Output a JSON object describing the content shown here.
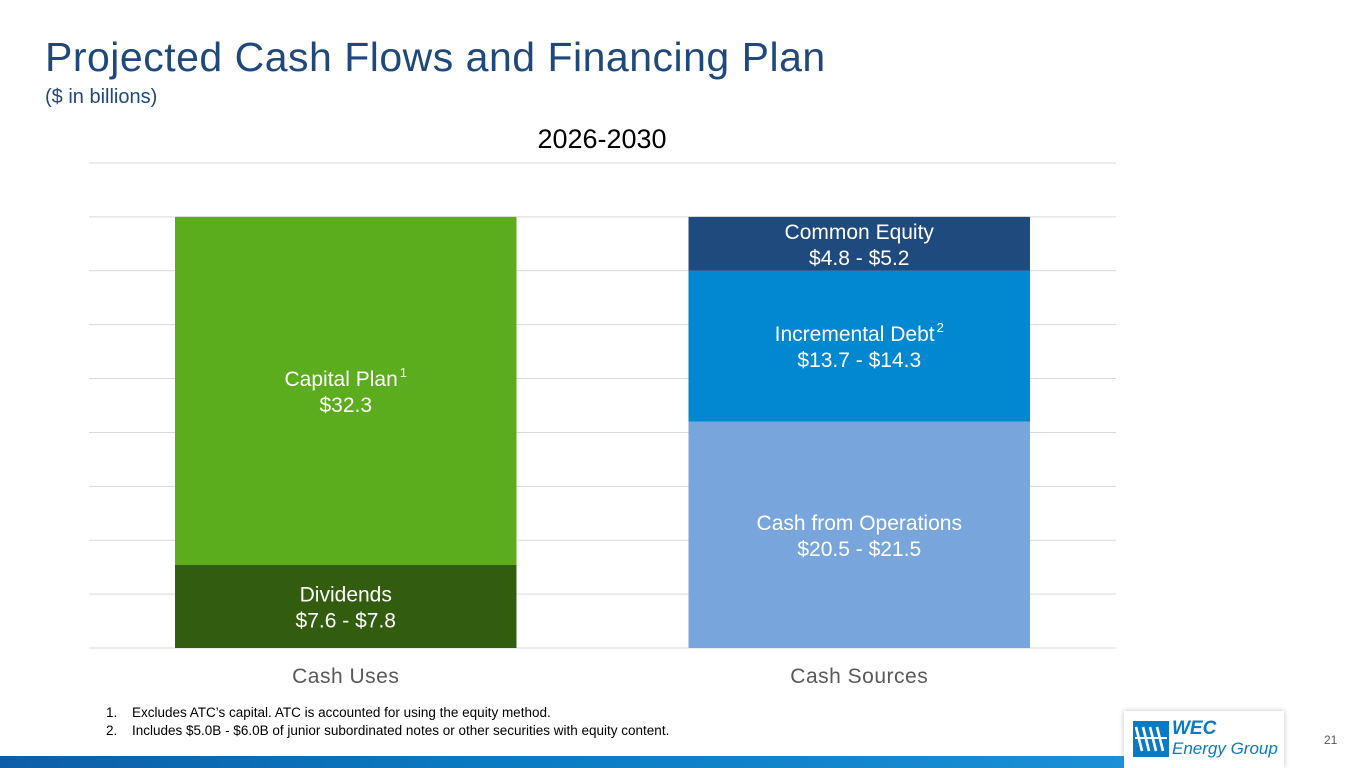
{
  "slide": {
    "title": "Projected Cash Flows and Financing Plan",
    "subtitle": "($ in billions)",
    "page_number": "21",
    "footnotes": [
      {
        "num": "1.",
        "text": "Excludes ATC’s capital. ATC is accounted for using the equity method."
      },
      {
        "num": "2.",
        "text": "Includes $5.0B - $6.0B of junior subordinated notes or other securities with equity content."
      }
    ],
    "logo": {
      "line1": "WEC",
      "line2": "Energy Group",
      "icon": "wec-logo-icon"
    }
  },
  "colors": {
    "title": "#1f497d",
    "capital_plan": "#5cad1d",
    "dividends": "#335d0e",
    "common_equity": "#1f4a7e",
    "incremental_debt": "#0288d1",
    "cash_from_operations": "#78a5db",
    "gridline": "#d9d9d9",
    "axis_label": "#595959"
  },
  "chart_data": {
    "type": "bar",
    "stacked": true,
    "title": "2026-2030",
    "categories": [
      "Cash Uses",
      "Cash Sources"
    ],
    "ylim": [
      0,
      45
    ],
    "grid": true,
    "legend": "none",
    "series": [
      {
        "name": "Dividends",
        "label": "Dividends",
        "value_label": "$7.6 - $7.8",
        "superscript": "",
        "values": [
          7.7,
          0
        ],
        "color": "#335d0e"
      },
      {
        "name": "Capital Plan",
        "label": "Capital Plan",
        "value_label": "$32.3",
        "superscript": "1",
        "values": [
          32.3,
          0
        ],
        "color": "#5cad1d"
      },
      {
        "name": "Cash from Operations",
        "label": "Cash from Operations",
        "value_label": "$20.5 - $21.5",
        "superscript": "",
        "values": [
          0,
          21.0
        ],
        "color": "#78a5db"
      },
      {
        "name": "Incremental Debt",
        "label": "Incremental Debt",
        "value_label": "$13.7 - $14.3",
        "superscript": "2",
        "values": [
          0,
          14.0
        ],
        "color": "#0288d1"
      },
      {
        "name": "Common Equity",
        "label": "Common Equity",
        "value_label": "$4.8 - $5.2",
        "superscript": "",
        "values": [
          0,
          5.0
        ],
        "color": "#1f4a7e"
      }
    ]
  }
}
